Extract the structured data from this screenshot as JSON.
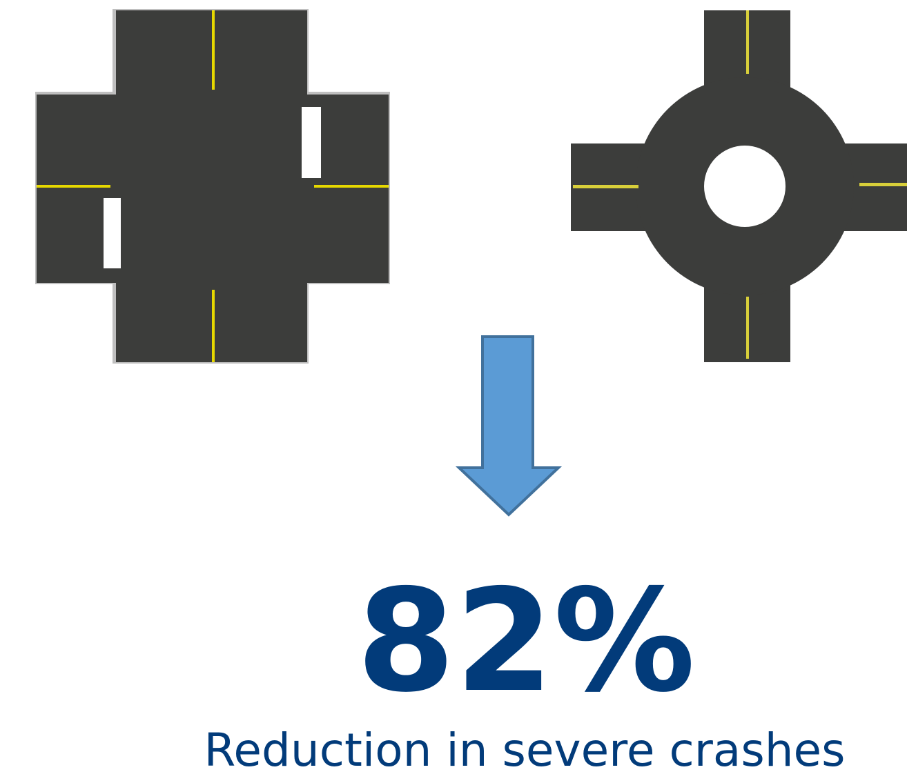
{
  "stat": {
    "value": "82%",
    "caption": "Reduction in severe crashes"
  }
}
